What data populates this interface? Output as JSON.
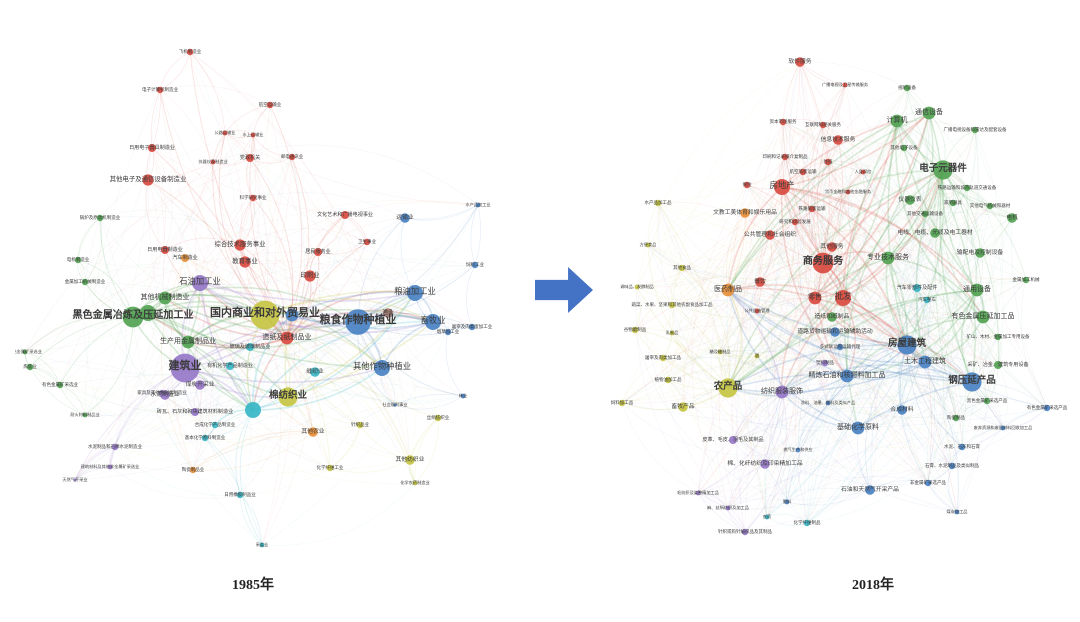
{
  "figure": {
    "clusters": {
      "red": "#d84b40",
      "green": "#52a353",
      "blue": "#4a82c3",
      "yellow": "#c6c544",
      "purple": "#9678c8",
      "teal": "#38b6c5",
      "orange": "#e8903a",
      "brown": "#a3766d"
    },
    "arrow_color": "#4472c4",
    "left": {
      "caption": "1985年",
      "style": {
        "seed": 7,
        "mesh": 3,
        "mesh_opacity": 0.07,
        "intra_opacity": 0.16,
        "hub_opacity": 0.22
      },
      "nodes": [
        [
          "飞机制造业",
          175,
          22,
          2,
          "red"
        ],
        [
          "电子计算机制造业",
          145,
          60,
          2,
          "red"
        ],
        [
          "航空运输业",
          255,
          75,
          2,
          "red"
        ],
        [
          "公路运输业",
          210,
          103,
          1.5,
          "red"
        ],
        [
          "水上运输业",
          238,
          105,
          1.5,
          "red"
        ],
        [
          "邮电通讯业",
          277,
          127,
          2,
          "red"
        ],
        [
          "日用电子器具制造业",
          137,
          118,
          2.5,
          "red"
        ],
        [
          "仪器仪表制造业",
          198,
          132,
          1.5,
          "red"
        ],
        [
          "党政机关",
          235,
          128,
          2.5,
          "red"
        ],
        [
          "其他电子及通信设备制造业",
          133,
          150,
          3.5,
          "red"
        ],
        [
          "科学研究事业",
          238,
          168,
          2,
          "red"
        ],
        [
          "文化艺术和广播电视事业",
          330,
          185,
          2.5,
          "red"
        ],
        [
          "综合技术服务事业",
          225,
          215,
          3.5,
          "red"
        ],
        [
          "教育事业",
          230,
          232,
          3.5,
          "red"
        ],
        [
          "居民服务业",
          303,
          222,
          2.5,
          "red"
        ],
        [
          "卫生事业",
          352,
          212,
          2,
          "red"
        ],
        [
          "印刷业",
          295,
          246,
          3.5,
          "red"
        ],
        [
          "日用电器制造业",
          150,
          220,
          2.5,
          "red"
        ],
        [
          "造纸及纸制品业",
          272,
          308,
          4,
          "red"
        ],
        [
          "锅炉及原动机制造业",
          85,
          188,
          2,
          "green"
        ],
        [
          "电机制造业",
          63,
          230,
          2,
          "green"
        ],
        [
          "金属加工机械制造业",
          70,
          252,
          2,
          "green"
        ],
        [
          "其他机械制造业",
          150,
          268,
          4,
          "green"
        ],
        [
          "黑色金属冶炼及压延加工业",
          118,
          287,
          6.5,
          "green"
        ],
        [
          "",
          133,
          283,
          5,
          "green"
        ],
        [
          "生产用金属制品业",
          173,
          312,
          4,
          "green"
        ],
        [
          "炼焦业",
          15,
          337,
          2,
          "green"
        ],
        [
          "黑色金属矿采选业",
          10,
          322,
          1.5,
          "green"
        ],
        [
          "有色金属矿采选业",
          45,
          355,
          2,
          "green"
        ],
        [
          "耐火材料制品业",
          70,
          385,
          1.5,
          "green"
        ],
        [
          "汽车制造业",
          170,
          228,
          2.5,
          "orange"
        ],
        [
          "其他农业",
          298,
          402,
          3,
          "orange"
        ],
        [
          "陶瓷制品业",
          178,
          440,
          2,
          "orange"
        ],
        [
          "石油加工业",
          185,
          253,
          5,
          "purple"
        ],
        [
          "建筑业",
          170,
          338,
          9,
          "purple"
        ],
        [
          "煤炭开采业",
          185,
          355,
          3,
          "purple"
        ],
        [
          "水泥制造业",
          150,
          365,
          3,
          "purple"
        ],
        [
          "砖瓦、石灰和砌块建筑材料制造业",
          180,
          382,
          2.5,
          "purple"
        ],
        [
          "水泥制品和石棉水泥制造业",
          100,
          417,
          2,
          "purple"
        ],
        [
          "建筑材料及其他非金属矿采选业",
          95,
          437,
          1.5,
          "purple"
        ],
        [
          "天然气开采业",
          60,
          450,
          1,
          "purple"
        ],
        [
          "家具及其他木制品制造业",
          147,
          363,
          2,
          "purple"
        ],
        [
          "国内商业和对外贸易业",
          250,
          285,
          9,
          "yellow"
        ],
        [
          "棉纺织业",
          273,
          367,
          6,
          "yellow"
        ],
        [
          "针织品业",
          345,
          395,
          2,
          "yellow"
        ],
        [
          "丝绢纺织业",
          423,
          388,
          2,
          "yellow"
        ],
        [
          "化学纤维工业",
          315,
          438,
          2,
          "yellow"
        ],
        [
          "其他纺织业",
          395,
          430,
          3,
          "yellow"
        ],
        [
          "化学农药制造业",
          400,
          453,
          1.5,
          "yellow"
        ],
        [
          "玻璃及玻璃制品业",
          235,
          317,
          2.5,
          "teal"
        ],
        [
          "有机化学产品制造业",
          215,
          336,
          2.5,
          "teal"
        ],
        [
          "缝纫业",
          300,
          342,
          3,
          "teal"
        ],
        [
          "",
          238,
          380,
          5,
          "teal"
        ],
        [
          "日用橡胶制品业",
          225,
          465,
          2,
          "teal"
        ],
        [
          "采盐业",
          247,
          515,
          1.5,
          "teal"
        ],
        [
          "基本化学原料制造业",
          190,
          408,
          2,
          "teal"
        ],
        [
          "合成化学产品制造业",
          200,
          395,
          2,
          "teal"
        ],
        [
          "粮食作物种植业",
          343,
          292,
          8,
          "blue"
        ],
        [
          "",
          277,
          285,
          4,
          "blue"
        ],
        [
          "粮油加工业",
          400,
          263,
          5,
          "blue"
        ],
        [
          "畜牧业",
          418,
          292,
          5,
          "blue"
        ],
        [
          "其他作物种植业",
          367,
          338,
          5,
          "blue"
        ],
        [
          "烟草加工业",
          433,
          302,
          2,
          "blue"
        ],
        [
          "屠宰及肉类蛋加工业",
          457,
          297,
          2,
          "blue"
        ],
        [
          "饲料工业",
          460,
          235,
          2,
          "blue"
        ],
        [
          "水产品加工业",
          463,
          175,
          1.5,
          "blue"
        ],
        [
          "社会福利事业",
          380,
          375,
          1,
          "blue"
        ],
        [
          "运输业",
          390,
          188,
          3,
          "blue"
        ],
        [
          "林业",
          448,
          366,
          1.5,
          "blue"
        ],
        [
          "渔业",
          373,
          283,
          3,
          "brown"
        ]
      ]
    },
    "right": {
      "caption": "2018年",
      "style": {
        "seed": 13,
        "mesh": 6,
        "mesh_opacity": 0.08,
        "intra_opacity": 0.14,
        "hub_opacity": 0.2
      },
      "nodes": [
        [
          "软件服务",
          200,
          17,
          3,
          "red"
        ],
        [
          "广播电视及卫星传输服务",
          245,
          40,
          1.5,
          "red"
        ],
        [
          "资本市场服务",
          183,
          77,
          2,
          "red"
        ],
        [
          "互联网和相关服务",
          223,
          80,
          2,
          "red"
        ],
        [
          "信息技术服务",
          238,
          95,
          3,
          "red"
        ],
        [
          "印刷和记录媒介复制品",
          185,
          112,
          2,
          "red"
        ],
        [
          "住宿",
          228,
          117,
          2,
          "red"
        ],
        [
          "航空旅客运输",
          203,
          127,
          2,
          "red"
        ],
        [
          "人身保险",
          263,
          127,
          1.5,
          "red"
        ],
        [
          "保险",
          147,
          140,
          2,
          "red"
        ],
        [
          "房地产",
          182,
          142,
          5,
          "red"
        ],
        [
          "货币金融和其他金融服务",
          248,
          147,
          1.5,
          "red"
        ],
        [
          "铁路旅客运输",
          212,
          164,
          2,
          "red"
        ],
        [
          "研究和试验发展",
          195,
          177,
          2,
          "red"
        ],
        [
          "公共管理和社会组织",
          170,
          190,
          3,
          "red"
        ],
        [
          "其他服务",
          232,
          202,
          3,
          "red"
        ],
        [
          "商务服务",
          223,
          218,
          6.5,
          "red"
        ],
        [
          "餐饮",
          160,
          237,
          3,
          "red"
        ],
        [
          "零售",
          215,
          253,
          4,
          "red"
        ],
        [
          "批发",
          243,
          253,
          5,
          "red"
        ],
        [
          "公共设施管理",
          157,
          266,
          1.5,
          "red"
        ],
        [
          "视听设备",
          307,
          43,
          2,
          "green"
        ],
        [
          "通信设备",
          329,
          68,
          4,
          "green"
        ],
        [
          "计算机",
          297,
          76,
          4,
          "green"
        ],
        [
          "广播电视设备和雷达及配套设备",
          375,
          85,
          2,
          "green"
        ],
        [
          "其他电子设备",
          304,
          103,
          2,
          "green"
        ],
        [
          "电子元器件",
          343,
          125,
          6,
          "green"
        ],
        [
          "铁路运输和城市轨道交通设备",
          367,
          143,
          2,
          "green"
        ],
        [
          "仪器仪表",
          310,
          155,
          3,
          "green"
        ],
        [
          "家用器具",
          353,
          158,
          2,
          "green"
        ],
        [
          "其他电气机械和器材",
          390,
          161,
          2,
          "green"
        ],
        [
          "其他交通运输设备",
          325,
          169,
          2,
          "green"
        ],
        [
          "电线、电缆、光缆及电工器材",
          335,
          188,
          3,
          "green"
        ],
        [
          "输配电及控制设备",
          380,
          208,
          3,
          "green"
        ],
        [
          "电机",
          412,
          173,
          3,
          "green"
        ],
        [
          "金属加工机械",
          426,
          235,
          2,
          "green"
        ],
        [
          "通用设备",
          377,
          245,
          4,
          "green"
        ],
        [
          "有色金属压延加工品",
          383,
          272,
          4,
          "green"
        ],
        [
          "矿山、木材、金属加工专用设备",
          398,
          292,
          2,
          "green"
        ],
        [
          "采矿、冶金、建筑专用设备",
          398,
          320,
          2.5,
          "green"
        ],
        [
          "专业技术服务",
          288,
          213,
          4,
          "green"
        ],
        [
          "造纸和纸制品",
          232,
          272,
          3,
          "green"
        ],
        [
          "陶瓷制品",
          356,
          373,
          2,
          "green"
        ],
        [
          "黑色金属矿采选产品",
          387,
          356,
          2,
          "green"
        ],
        [
          "汽车零部件及配件",
          317,
          243,
          2.5,
          "teal"
        ],
        [
          "汽车整车",
          327,
          255,
          2,
          "teal"
        ],
        [
          "化学纤维制品",
          207,
          478,
          2,
          "teal"
        ],
        [
          "农药",
          167,
          472,
          1.5,
          "teal"
        ],
        [
          "房屋建筑",
          307,
          300,
          6,
          "blue"
        ],
        [
          "土木工程建筑",
          325,
          317,
          4,
          "blue"
        ],
        [
          "道路货物运输和运输辅助活动",
          235,
          287,
          3,
          "blue"
        ],
        [
          "多式联运和运输代理",
          240,
          302,
          2,
          "blue"
        ],
        [
          "精炼石油和核燃料加工品",
          247,
          331,
          4,
          "blue"
        ],
        [
          "钢压延产品",
          372,
          337,
          6,
          "blue"
        ],
        [
          "合成材料",
          302,
          365,
          3,
          "blue"
        ],
        [
          "有色金属矿采选产品",
          447,
          363,
          2,
          "blue"
        ],
        [
          "废弃资源和废旧材料回收加工品",
          403,
          383,
          1.5,
          "blue"
        ],
        [
          "水泥、石灰和石膏",
          362,
          402,
          2,
          "blue"
        ],
        [
          "石膏、水泥制品及类似制品",
          352,
          421,
          2,
          "blue"
        ],
        [
          "非金属矿采选产品",
          328,
          438,
          2,
          "blue"
        ],
        [
          "石油和天然气开采产品",
          270,
          445,
          3,
          "blue"
        ],
        [
          "煤炭加工品",
          357,
          467,
          1.5,
          "blue"
        ],
        [
          "基础化学原料",
          258,
          383,
          4,
          "blue"
        ],
        [
          "燃气生产和供应",
          198,
          405,
          1.5,
          "blue"
        ],
        [
          "涂料、油墨、颜料及类似产品",
          228,
          358,
          1.5,
          "blue"
        ],
        [
          "肥料",
          187,
          457,
          1.5,
          "blue"
        ],
        [
          "纺织服装服饰",
          182,
          347,
          4,
          "purple"
        ],
        [
          "皮革、毛皮、羽毛及其制品",
          133,
          395,
          2.5,
          "purple"
        ],
        [
          "棉、化纤纺织及印染精加工品",
          165,
          419,
          3,
          "purple"
        ],
        [
          "毛纺织及染整精加工品",
          98,
          448,
          1.5,
          "purple"
        ],
        [
          "麻、丝绢纺织及加工品",
          128,
          463,
          1.5,
          "purple"
        ],
        [
          "针织或钩针编织品及其制品",
          145,
          487,
          2,
          "purple"
        ],
        [
          "塑料制品",
          225,
          318,
          2,
          "purple"
        ],
        [
          "水产品加工品",
          58,
          158,
          2,
          "yellow"
        ],
        [
          "方便食品",
          48,
          200,
          1.5,
          "yellow"
        ],
        [
          "其他食品",
          82,
          223,
          2,
          "yellow"
        ],
        [
          "调味品、发酵制品",
          37,
          242,
          1.5,
          "yellow"
        ],
        [
          "蔬菜、水果、坚果和其他农副食品加工品",
          72,
          260,
          2,
          "yellow"
        ],
        [
          "谷物磨制品",
          35,
          285,
          2,
          "yellow"
        ],
        [
          "乳制品",
          72,
          288,
          1.5,
          "yellow"
        ],
        [
          "屠宰及肉类加工品",
          63,
          313,
          2,
          "yellow"
        ],
        [
          "糖及糖制品",
          120,
          307,
          1.5,
          "yellow"
        ],
        [
          "酒",
          157,
          311,
          1.5,
          "yellow"
        ],
        [
          "植物油加工品",
          68,
          335,
          2,
          "yellow"
        ],
        [
          "饲料加工品",
          22,
          358,
          2,
          "yellow"
        ],
        [
          "畜牧产品",
          83,
          362,
          3,
          "yellow"
        ],
        [
          "农产品",
          128,
          343,
          6,
          "yellow"
        ],
        [
          "医药制品",
          128,
          245,
          4,
          "orange"
        ],
        [
          "文教工美体育和娱乐用品",
          145,
          168,
          3,
          "orange"
        ]
      ]
    }
  }
}
